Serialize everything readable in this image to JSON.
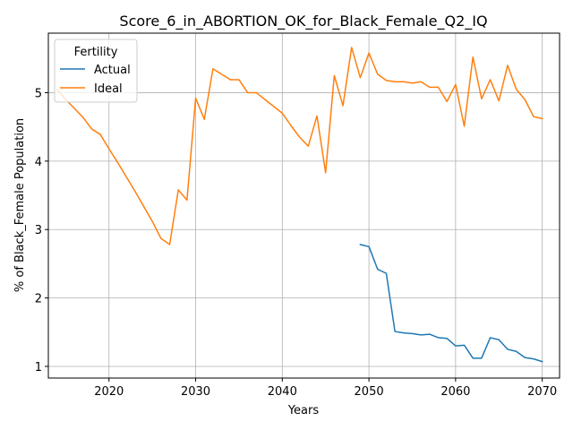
{
  "chart_data": {
    "type": "line",
    "title": "Score_6_in_ABORTION_OK_for_Black_Female_Q2_IQ",
    "xlabel": "Years",
    "ylabel": "% of Black_Female Population",
    "xlim": [
      2013,
      2072
    ],
    "ylim": [
      0.83,
      5.87
    ],
    "xticks": [
      2020,
      2030,
      2040,
      2050,
      2060,
      2070
    ],
    "yticks": [
      1,
      2,
      3,
      4,
      5
    ],
    "grid": true,
    "legend": {
      "title": "Fertility",
      "placement": "top-left"
    },
    "series": [
      {
        "name": "Actual",
        "color": "#1f77b4",
        "x": [
          2049,
          2050,
          2051,
          2052,
          2053,
          2054,
          2055,
          2056,
          2057,
          2058,
          2059,
          2060,
          2061,
          2062,
          2063,
          2064,
          2065,
          2066,
          2067,
          2068,
          2069,
          2070
        ],
        "y": [
          2.78,
          2.75,
          2.42,
          2.36,
          1.51,
          1.49,
          1.48,
          1.46,
          1.47,
          1.42,
          1.41,
          1.3,
          1.31,
          1.12,
          1.12,
          1.42,
          1.39,
          1.25,
          1.22,
          1.13,
          1.11,
          1.07
        ]
      },
      {
        "name": "Ideal",
        "color": "#ff7f0e",
        "x": [
          2014,
          2015,
          2016,
          2017,
          2018,
          2019,
          2020,
          2021,
          2022,
          2023,
          2024,
          2025,
          2026,
          2027,
          2028,
          2029,
          2030,
          2031,
          2032,
          2033,
          2034,
          2035,
          2036,
          2037,
          2038,
          2039,
          2040,
          2041,
          2042,
          2043,
          2044,
          2045,
          2046,
          2047,
          2048,
          2049,
          2050,
          2051,
          2052,
          2053,
          2054,
          2055,
          2056,
          2057,
          2058,
          2059,
          2060,
          2061,
          2062,
          2063,
          2064,
          2065,
          2066,
          2067,
          2068,
          2069,
          2070
        ],
        "y": [
          5.05,
          4.9,
          4.77,
          4.64,
          4.47,
          4.39,
          4.18,
          3.98,
          3.77,
          3.56,
          3.34,
          3.12,
          2.87,
          2.78,
          3.58,
          3.43,
          4.92,
          4.61,
          5.35,
          5.27,
          5.19,
          5.19,
          5.0,
          5.0,
          4.9,
          4.8,
          4.7,
          4.52,
          4.35,
          4.22,
          4.66,
          3.83,
          5.25,
          4.81,
          5.66,
          5.22,
          5.58,
          5.27,
          5.18,
          5.16,
          5.16,
          5.14,
          5.16,
          5.08,
          5.08,
          4.87,
          5.12,
          4.51,
          5.52,
          4.91,
          5.19,
          4.88,
          5.4,
          5.05,
          4.9,
          4.65,
          4.62
        ]
      }
    ]
  }
}
